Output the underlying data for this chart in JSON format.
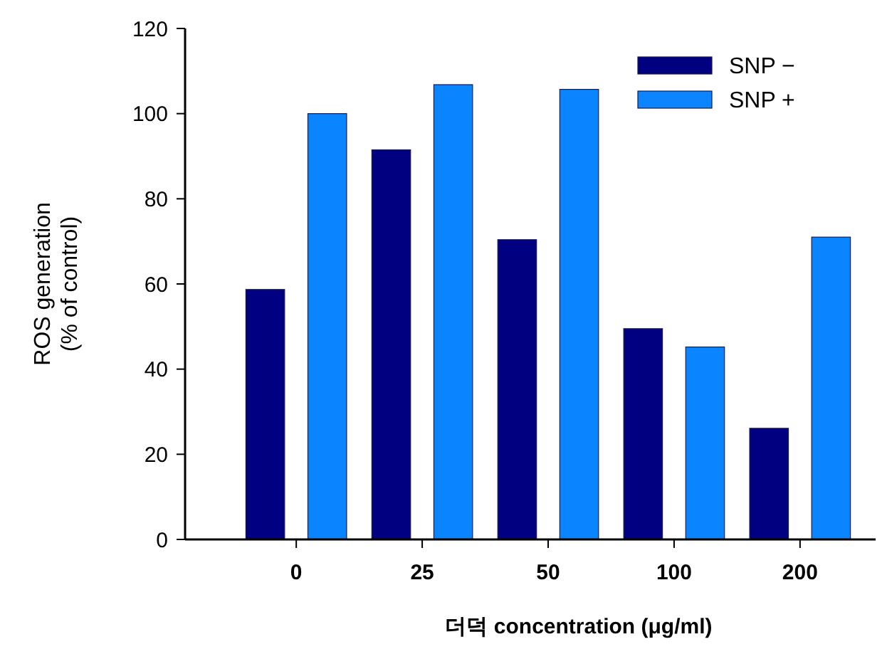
{
  "chart_data": {
    "type": "bar",
    "xlabel": "더덕 concentration (μg/ml)",
    "ylabel": "ROS generation\n(% of control)",
    "categories": [
      "0",
      "25",
      "50",
      "100",
      "200"
    ],
    "series": [
      {
        "name": "SNP −",
        "color": "#000080",
        "values": [
          58.7,
          91.5,
          70.4,
          49.5,
          26.1
        ]
      },
      {
        "name": "SNP +",
        "color": "#0a84ff",
        "values": [
          100,
          106.8,
          105.7,
          45.2,
          71
        ]
      }
    ],
    "ylim": [
      0,
      120
    ],
    "yticks": [
      0,
      20,
      40,
      60,
      80,
      100,
      120
    ],
    "legend": "top right"
  }
}
